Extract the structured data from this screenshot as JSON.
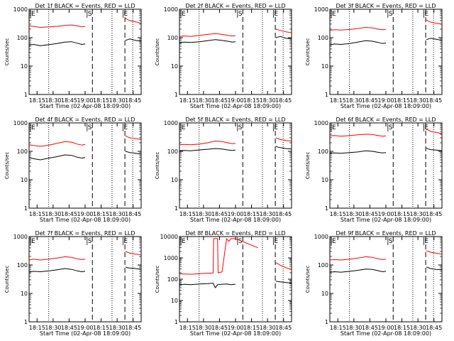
{
  "figure": {
    "ylabel": "Counts/sec",
    "xlabel": "Start Time (02-Apr-08 18:09:00)",
    "xticks": [
      "18:15",
      "18:30",
      "18:45",
      "19:00",
      "18:15",
      "18:30",
      "18:45"
    ],
    "yticks": [
      "1",
      "10",
      "100",
      "1000",
      "10000"
    ],
    "colors": {
      "events": "#000000",
      "lld": "#ff0000",
      "frame": "#000000"
    }
  },
  "chart_data": [
    {
      "type": "line",
      "title": "Det 1f BLACK = Events, RED = LLD",
      "ymax": 1000,
      "markers": [
        {
          "label": "E",
          "t": 0
        },
        {
          "label": "S",
          "t": 0.505
        },
        {
          "label": "E",
          "t": 0.825
        }
      ],
      "dotted_t": [
        0.175,
        0.74,
        0.925
      ],
      "dashed_t": [
        0.565,
        0.855
      ],
      "series": [
        {
          "name": "Events",
          "t": [
            0,
            0.04,
            0.1,
            0.18,
            0.25,
            0.32,
            0.38,
            0.43,
            0.47,
            0.5,
            0.86,
            0.88,
            0.9,
            0.95,
            1
          ],
          "values": [
            55,
            58,
            52,
            57,
            62,
            70,
            72,
            64,
            58,
            60,
            80,
            85,
            90,
            80,
            75
          ]
        },
        {
          "name": "LLD",
          "t": [
            0,
            0.04,
            0.1,
            0.18,
            0.25,
            0.32,
            0.38,
            0.43,
            0.47,
            0.5,
            0.86,
            0.88,
            0.9,
            0.95,
            1
          ],
          "values": [
            260,
            250,
            230,
            240,
            250,
            270,
            280,
            260,
            240,
            250,
            480,
            430,
            400,
            360,
            320
          ]
        }
      ]
    },
    {
      "type": "line",
      "title": "Det 2f BLACK = Events, RED = LLD",
      "ymax": 1000,
      "markers": [
        {
          "label": "E",
          "t": 0
        },
        {
          "label": "S",
          "t": 0.505
        },
        {
          "label": "E",
          "t": 0.825
        }
      ],
      "dotted_t": [
        0.175,
        0.74,
        0.925
      ],
      "dashed_t": [
        0.565,
        0.855
      ],
      "series": [
        {
          "name": "Events",
          "t": [
            0,
            0.04,
            0.1,
            0.18,
            0.25,
            0.32,
            0.38,
            0.43,
            0.47,
            0.5,
            0.86,
            0.88,
            0.9,
            0.95,
            1
          ],
          "values": [
            65,
            70,
            68,
            72,
            78,
            85,
            80,
            75,
            70,
            72,
            100,
            105,
            110,
            95,
            90
          ]
        },
        {
          "name": "LLD",
          "t": [
            0,
            0.04,
            0.1,
            0.18,
            0.25,
            0.32,
            0.38,
            0.43,
            0.47,
            0.5,
            0.86,
            0.88,
            0.9,
            0.95,
            1
          ],
          "values": [
            110,
            115,
            110,
            120,
            130,
            140,
            130,
            120,
            115,
            118,
            200,
            190,
            180,
            160,
            150
          ]
        }
      ]
    },
    {
      "type": "line",
      "title": "Det 3f BLACK = Events, RED = LLD",
      "ymax": 1000,
      "markers": [
        {
          "label": "E",
          "t": 0
        },
        {
          "label": "S",
          "t": 0.505
        },
        {
          "label": "E",
          "t": 0.825
        }
      ],
      "dotted_t": [
        0.175,
        0.74,
        0.925
      ],
      "dashed_t": [
        0.565,
        0.855
      ],
      "series": [
        {
          "name": "Events",
          "t": [
            0,
            0.04,
            0.1,
            0.18,
            0.25,
            0.32,
            0.38,
            0.43,
            0.47,
            0.5,
            0.86,
            0.88,
            0.9,
            0.95,
            1
          ],
          "values": [
            55,
            60,
            58,
            62,
            70,
            78,
            75,
            68,
            62,
            65,
            85,
            90,
            95,
            88,
            80
          ]
        },
        {
          "name": "LLD",
          "t": [
            0,
            0.04,
            0.1,
            0.18,
            0.25,
            0.32,
            0.38,
            0.43,
            0.47,
            0.5,
            0.86,
            0.88,
            0.9,
            0.95,
            1
          ],
          "values": [
            180,
            190,
            185,
            195,
            210,
            230,
            220,
            200,
            190,
            195,
            420,
            380,
            350,
            320,
            300
          ]
        }
      ]
    },
    {
      "type": "line",
      "title": "Det 4f BLACK = Events, RED = LLD",
      "ymax": 1000,
      "markers": [
        {
          "label": "E",
          "t": 0
        },
        {
          "label": "S",
          "t": 0.505
        },
        {
          "label": "E",
          "t": 0.825
        }
      ],
      "dotted_t": [
        0.175,
        0.74,
        0.925
      ],
      "dashed_t": [
        0.565,
        0.855
      ],
      "series": [
        {
          "name": "Events",
          "t": [
            0,
            0.04,
            0.1,
            0.18,
            0.25,
            0.32,
            0.38,
            0.43,
            0.47,
            0.5,
            0.86,
            0.88,
            0.9,
            0.95,
            1
          ],
          "values": [
            60,
            55,
            50,
            58,
            65,
            75,
            72,
            62,
            58,
            60,
            100,
            95,
            90,
            85,
            80
          ]
        },
        {
          "name": "LLD",
          "t": [
            0,
            0.04,
            0.1,
            0.18,
            0.25,
            0.32,
            0.38,
            0.43,
            0.47,
            0.5,
            0.86,
            0.88,
            0.9,
            0.95,
            1
          ],
          "values": [
            170,
            160,
            150,
            165,
            190,
            220,
            210,
            180,
            165,
            175,
            350,
            320,
            300,
            280,
            260
          ]
        }
      ]
    },
    {
      "type": "line",
      "title": "Det 5f BLACK = Events, RED = LLD",
      "ymax": 1000,
      "markers": [
        {
          "label": "E",
          "t": 0
        },
        {
          "label": "S",
          "t": 0.505
        },
        {
          "label": "E",
          "t": 0.825
        }
      ],
      "dotted_t": [
        0.175,
        0.74,
        0.925
      ],
      "dashed_t": [
        0.565,
        0.855
      ],
      "series": [
        {
          "name": "Events",
          "t": [
            0,
            0.04,
            0.1,
            0.18,
            0.25,
            0.32,
            0.38,
            0.43,
            0.47,
            0.5,
            0.86,
            0.88,
            0.9,
            0.95,
            1
          ],
          "values": [
            105,
            108,
            105,
            112,
            118,
            125,
            120,
            112,
            108,
            110,
            150,
            140,
            135,
            125,
            120
          ]
        },
        {
          "name": "LLD",
          "t": [
            0,
            0.04,
            0.1,
            0.18,
            0.25,
            0.32,
            0.38,
            0.43,
            0.47,
            0.5,
            0.86,
            0.88,
            0.9,
            0.95,
            1
          ],
          "values": [
            170,
            175,
            170,
            180,
            200,
            230,
            220,
            200,
            185,
            190,
            300,
            280,
            260,
            240,
            230
          ]
        }
      ]
    },
    {
      "type": "line",
      "title": "Det 6f BLACK = Events, RED = LLD",
      "ymax": 1000,
      "markers": [
        {
          "label": "E",
          "t": 0
        },
        {
          "label": "S",
          "t": 0.505
        },
        {
          "label": "E",
          "t": 0.825
        }
      ],
      "dotted_t": [
        0.175,
        0.74,
        0.925
      ],
      "dashed_t": [
        0.565,
        0.855
      ],
      "series": [
        {
          "name": "Events",
          "t": [
            0,
            0.04,
            0.1,
            0.18,
            0.25,
            0.32,
            0.38,
            0.43,
            0.47,
            0.5,
            0.86,
            0.88,
            0.9,
            0.95,
            1
          ],
          "values": [
            85,
            88,
            85,
            90,
            95,
            105,
            100,
            92,
            88,
            90,
            130,
            120,
            115,
            110,
            105
          ]
        },
        {
          "name": "LLD",
          "t": [
            0,
            0.04,
            0.1,
            0.18,
            0.25,
            0.32,
            0.38,
            0.43,
            0.47,
            0.5,
            0.86,
            0.88,
            0.9,
            0.95,
            1
          ],
          "values": [
            350,
            360,
            340,
            360,
            380,
            400,
            390,
            360,
            340,
            350,
            600,
            550,
            500,
            460,
            420
          ]
        }
      ]
    },
    {
      "type": "line",
      "title": "Det 7f BLACK = Events, RED = LLD",
      "ymax": 1000,
      "markers": [
        {
          "label": "E",
          "t": 0
        },
        {
          "label": "S",
          "t": 0.505
        },
        {
          "label": "E",
          "t": 0.825
        }
      ],
      "dotted_t": [
        0.175,
        0.74,
        0.925
      ],
      "dashed_t": [
        0.565,
        0.855
      ],
      "series": [
        {
          "name": "Events",
          "t": [
            0,
            0.04,
            0.1,
            0.18,
            0.25,
            0.32,
            0.38,
            0.43,
            0.47,
            0.5,
            0.86,
            0.88,
            0.9,
            0.95,
            1
          ],
          "values": [
            55,
            60,
            58,
            62,
            68,
            75,
            70,
            62,
            58,
            60,
            85,
            80,
            78,
            75,
            70
          ]
        },
        {
          "name": "LLD",
          "t": [
            0,
            0.04,
            0.1,
            0.18,
            0.25,
            0.32,
            0.38,
            0.43,
            0.47,
            0.5,
            0.86,
            0.88,
            0.9,
            0.95,
            1
          ],
          "values": [
            150,
            160,
            150,
            160,
            175,
            195,
            185,
            165,
            155,
            160,
            300,
            280,
            260,
            240,
            230
          ]
        }
      ]
    },
    {
      "type": "line",
      "title": "Det 8f BLACK = Events, RED = LLD",
      "ymax": 10000,
      "markers": [
        {
          "label": "E",
          "t": 0
        },
        {
          "label": "S",
          "t": 0.505
        },
        {
          "label": "E",
          "t": 0.825
        }
      ],
      "dotted_t": [
        0.175,
        0.74,
        0.925
      ],
      "dashed_t": [
        0.565,
        0.855
      ],
      "series": [
        {
          "name": "Events",
          "t": [
            0,
            0.05,
            0.1,
            0.18,
            0.25,
            0.3,
            0.32,
            0.34,
            0.38,
            0.42,
            0.46,
            0.5,
            0.86,
            0.9,
            0.95,
            1
          ],
          "values": [
            55,
            58,
            55,
            60,
            62,
            65,
            40,
            55,
            58,
            60,
            55,
            58,
            80,
            75,
            70,
            65
          ]
        },
        {
          "name": "LLD",
          "t": [
            0,
            0.05,
            0.1,
            0.18,
            0.25,
            0.3,
            0.305,
            0.34,
            0.345,
            0.38,
            0.42,
            0.44,
            0.46,
            0.5,
            0.7,
            0.86,
            0.9,
            0.95,
            1
          ],
          "values": [
            180,
            175,
            170,
            180,
            190,
            195,
            8000,
            8000,
            200,
            220,
            8000,
            6000,
            8000,
            8000,
            3000,
            600,
            450,
            350,
            280
          ]
        }
      ]
    },
    {
      "type": "line",
      "title": "Det 9f BLACK = Events, RED = LLD",
      "ymax": 1000,
      "markers": [
        {
          "label": "E",
          "t": 0
        },
        {
          "label": "S",
          "t": 0.505
        },
        {
          "label": "E",
          "t": 0.825
        }
      ],
      "dotted_t": [
        0.175,
        0.74,
        0.925
      ],
      "dashed_t": [
        0.565,
        0.855
      ],
      "series": [
        {
          "name": "Events",
          "t": [
            0,
            0.04,
            0.1,
            0.18,
            0.25,
            0.32,
            0.38,
            0.43,
            0.47,
            0.5,
            0.86,
            0.88,
            0.9,
            0.95,
            1
          ],
          "values": [
            55,
            58,
            56,
            60,
            65,
            72,
            70,
            63,
            58,
            60,
            85,
            80,
            75,
            70,
            68
          ]
        },
        {
          "name": "LLD",
          "t": [
            0,
            0.04,
            0.1,
            0.18,
            0.25,
            0.32,
            0.38,
            0.43,
            0.47,
            0.5,
            0.86,
            0.88,
            0.9,
            0.95,
            1
          ],
          "values": [
            150,
            155,
            150,
            160,
            175,
            195,
            185,
            165,
            155,
            160,
            320,
            300,
            280,
            260,
            240
          ]
        }
      ]
    }
  ]
}
